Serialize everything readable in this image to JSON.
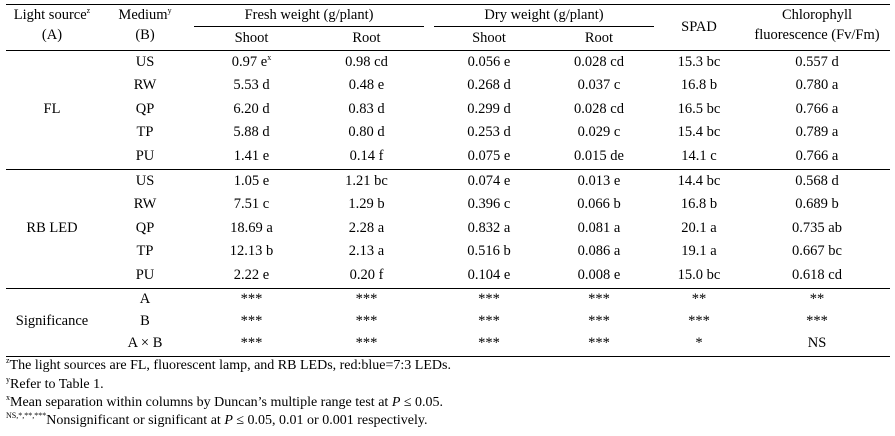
{
  "header": {
    "light_source": "Light source",
    "light_source_sup": "z",
    "light_source_sub": "(A)",
    "medium": "Medium",
    "medium_sup": "y",
    "medium_sub": "(B)",
    "fresh_weight": "Fresh weight (g/plant)",
    "dry_weight": "Dry weight (g/plant)",
    "shoot": "Shoot",
    "root": "Root",
    "spad": "SPAD",
    "chl_line1": "Chlorophyll",
    "chl_line2": "fluorescence (Fv/Fm)"
  },
  "groups": [
    {
      "light": "FL",
      "rows": [
        {
          "medium": "US",
          "fw_shoot": "0.97 e",
          "fw_shoot_sup": "x",
          "fw_root": "0.98 cd",
          "dw_shoot": "0.056 e",
          "dw_root": "0.028 cd",
          "spad": "15.3 bc",
          "chl": "0.557 d"
        },
        {
          "medium": "RW",
          "fw_shoot": "5.53 d",
          "fw_root": "0.48 e",
          "dw_shoot": "0.268 d",
          "dw_root": "0.037 c",
          "spad": "16.8 b",
          "chl": "0.780 a"
        },
        {
          "medium": "QP",
          "fw_shoot": "6.20 d",
          "fw_root": "0.83 d",
          "dw_shoot": "0.299 d",
          "dw_root": "0.028 cd",
          "spad": "16.5 bc",
          "chl": "0.766 a"
        },
        {
          "medium": "TP",
          "fw_shoot": "5.88 d",
          "fw_root": "0.80 d",
          "dw_shoot": "0.253 d",
          "dw_root": "0.029 c",
          "spad": "15.4 bc",
          "chl": "0.789 a"
        },
        {
          "medium": "PU",
          "fw_shoot": "1.41 e",
          "fw_root": "0.14 f",
          "dw_shoot": "0.075 e",
          "dw_root": "0.015 de",
          "spad": "14.1 c",
          "chl": "0.766 a"
        }
      ]
    },
    {
      "light": "RB LED",
      "rows": [
        {
          "medium": "US",
          "fw_shoot": "1.05 e",
          "fw_root": "1.21 bc",
          "dw_shoot": "0.074 e",
          "dw_root": "0.013 e",
          "spad": "14.4 bc",
          "chl": "0.568 d"
        },
        {
          "medium": "RW",
          "fw_shoot": "7.51 c",
          "fw_root": "1.29 b",
          "dw_shoot": "0.396 c",
          "dw_root": "0.066 b",
          "spad": "16.8 b",
          "chl": "0.689 b"
        },
        {
          "medium": "QP",
          "fw_shoot": "18.69 a",
          "fw_root": "2.28 a",
          "dw_shoot": "0.832 a",
          "dw_root": "0.081 a",
          "spad": "20.1 a",
          "chl": "0.735 ab"
        },
        {
          "medium": "TP",
          "fw_shoot": "12.13 b",
          "fw_root": "2.13 a",
          "dw_shoot": "0.516 b",
          "dw_root": "0.086 a",
          "spad": "19.1 a",
          "chl": "0.667 bc"
        },
        {
          "medium": "PU",
          "fw_shoot": "2.22 e",
          "fw_root": "0.20 f",
          "dw_shoot": "0.104 e",
          "dw_root": "0.008 e",
          "spad": "15.0 bc",
          "chl": "0.618 cd"
        }
      ]
    }
  ],
  "significance": {
    "label": "Significance",
    "rows": [
      {
        "medium": "A",
        "fw_shoot": "***",
        "fw_root": "***",
        "dw_shoot": "***",
        "dw_root": "***",
        "spad": "**",
        "chl": "**"
      },
      {
        "medium": "B",
        "fw_shoot": "***",
        "fw_root": "***",
        "dw_shoot": "***",
        "dw_root": "***",
        "spad": "***",
        "chl": "***"
      },
      {
        "medium": "A × B",
        "fw_shoot": "***",
        "fw_root": "***",
        "dw_shoot": "***",
        "dw_root": "***",
        "spad": "*",
        "chl": "NS"
      }
    ]
  },
  "footnotes": [
    {
      "sup": "z",
      "text": "The light sources are FL, fluorescent lamp, and RB LEDs, red:blue=7:3 LEDs."
    },
    {
      "sup": "y",
      "text": "Refer to Table 1."
    },
    {
      "sup": "x",
      "text": "Mean separation within columns by Duncan’s multiple range test at ",
      "italic": "P",
      "tail": " ≤ 0.05."
    },
    {
      "sup": "NS,*,**,***",
      "text": "Nonsignificant or significant at ",
      "italic": "P",
      "tail": " ≤ 0.05, 0.01 or 0.001 respectively."
    }
  ]
}
